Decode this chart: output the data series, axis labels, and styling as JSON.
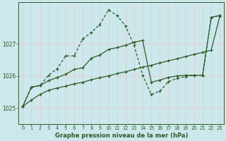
{
  "xlabel": "Graphe pression niveau de la mer (hPa)",
  "background_color": "#cce8ec",
  "plot_bg_color": "#cce8ec",
  "grid_color": "#b0d8dc",
  "line_color": "#2d5a27",
  "x_ticks": [
    0,
    1,
    2,
    3,
    4,
    5,
    6,
    7,
    8,
    9,
    10,
    11,
    12,
    13,
    14,
    15,
    16,
    17,
    18,
    19,
    20,
    21,
    22,
    23
  ],
  "y_ticks": [
    1025,
    1026,
    1027
  ],
  "ylim": [
    1024.5,
    1028.3
  ],
  "xlim": [
    -0.5,
    23.5
  ],
  "series_linear_x": [
    0,
    1,
    2,
    3,
    4,
    5,
    6,
    7,
    8,
    9,
    10,
    11,
    12,
    13,
    14,
    15,
    16,
    17,
    18,
    19,
    20,
    21,
    22,
    23
  ],
  "series_linear_y": [
    1025.05,
    1025.25,
    1025.42,
    1025.55,
    1025.62,
    1025.68,
    1025.75,
    1025.8,
    1025.88,
    1025.94,
    1026.0,
    1026.07,
    1026.13,
    1026.2,
    1026.27,
    1026.33,
    1026.4,
    1026.47,
    1026.53,
    1026.6,
    1026.67,
    1026.73,
    1026.8,
    1027.85
  ],
  "series_mid_x": [
    0,
    1,
    2,
    3,
    4,
    5,
    6,
    7,
    8,
    9,
    10,
    11,
    12,
    13,
    14,
    15,
    16,
    17,
    18,
    19,
    20,
    21,
    22,
    23
  ],
  "series_mid_y": [
    1025.05,
    1025.65,
    1025.7,
    1025.85,
    1025.95,
    1026.05,
    1026.2,
    1026.25,
    1026.55,
    1026.65,
    1026.82,
    1026.88,
    1026.95,
    1027.05,
    1027.1,
    1025.8,
    1025.87,
    1025.95,
    1026.0,
    1026.02,
    1026.02,
    1026.02,
    1027.82,
    1027.88
  ],
  "series_jagged_x": [
    0,
    1,
    2,
    3,
    4,
    5,
    6,
    7,
    8,
    9,
    10,
    11,
    12,
    13,
    14,
    15,
    16,
    17,
    18,
    19,
    20,
    21,
    22,
    23
  ],
  "series_jagged_y": [
    1025.05,
    1025.65,
    1025.7,
    1026.02,
    1026.22,
    1026.62,
    1026.62,
    1027.15,
    1027.35,
    1027.6,
    1028.05,
    1027.88,
    1027.55,
    1026.95,
    1026.02,
    1025.42,
    1025.52,
    1025.82,
    1025.92,
    1025.98,
    1026.02,
    1026.02,
    1027.82,
    1027.88
  ]
}
